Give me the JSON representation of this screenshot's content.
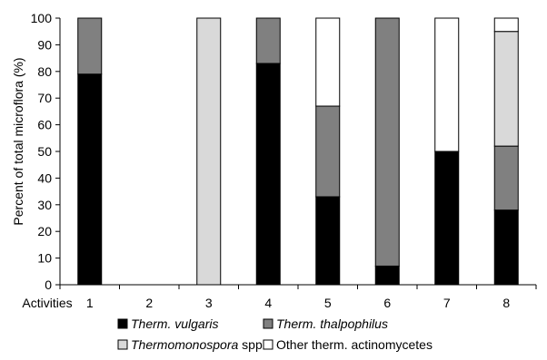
{
  "chart_data": {
    "type": "bar",
    "stacked": true,
    "xlabel": "Activities",
    "ylabel": "Percent of total microflora (%)",
    "ylim": [
      0,
      100
    ],
    "yticks": [
      0,
      10,
      20,
      30,
      40,
      50,
      60,
      70,
      80,
      90,
      100
    ],
    "categories": [
      "1",
      "2",
      "3",
      "4",
      "5",
      "6",
      "7",
      "8"
    ],
    "grid": false,
    "legend_position": "bottom",
    "series": [
      {
        "name_italic": "Therm. vulgaris",
        "name_plain": "",
        "color": "#000000",
        "values": [
          79,
          0,
          0,
          83,
          33,
          7,
          50,
          28
        ]
      },
      {
        "name_italic": "Therm. thalpophilus",
        "name_plain": "",
        "color": "#808080",
        "values": [
          21,
          0,
          0,
          17,
          34,
          93,
          0,
          24
        ]
      },
      {
        "name_italic": "Thermomonospora",
        "name_plain": " spp.",
        "color": "#d9d9d9",
        "values": [
          0,
          0,
          100,
          0,
          0,
          0,
          0,
          43
        ]
      },
      {
        "name_italic": "",
        "name_plain": "Other therm. actinomycetes",
        "color": "#ffffff",
        "values": [
          0,
          0,
          0,
          0,
          33,
          0,
          50,
          5
        ]
      }
    ]
  }
}
